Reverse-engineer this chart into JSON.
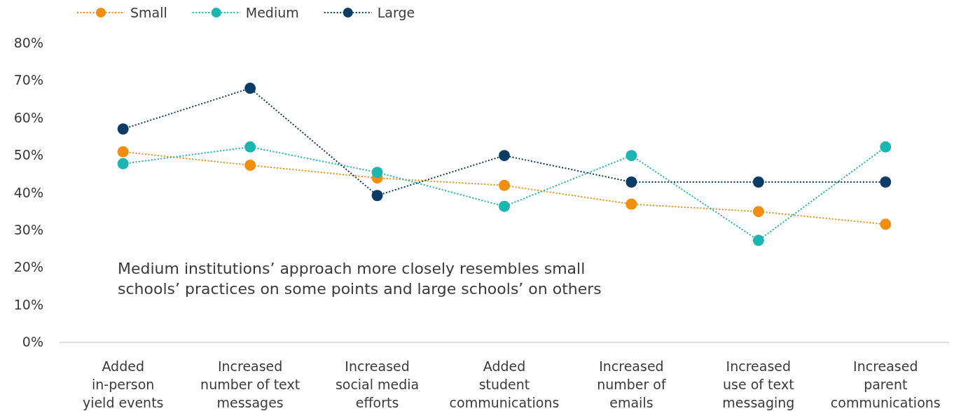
{
  "chart_data": {
    "type": "line",
    "categories": [
      "Added\nin-person\nyield events",
      "Increased\nnumber of text\nmessages",
      "Increased\nsocial media\nefforts",
      "Added\nstudent\ncommunications",
      "Increased\nnumber of\nemails",
      "Increased\nuse of text\nmessaging",
      "Increased\nparent\ncommunications"
    ],
    "series": [
      {
        "name": "Small",
        "color": "#f18d0f",
        "values": [
          51,
          47.4,
          44,
          42,
          37,
          35,
          31.6
        ]
      },
      {
        "name": "Medium",
        "color": "#1cb5b1",
        "values": [
          47.8,
          52.3,
          45.5,
          36.4,
          50,
          27.3,
          52.3
        ]
      },
      {
        "name": "Large",
        "color": "#0c3b66",
        "values": [
          57.1,
          68,
          39.3,
          50,
          42.9,
          42.9,
          42.9
        ]
      }
    ],
    "ylim": [
      0,
      80
    ],
    "yticks": [
      {
        "value": 0,
        "label": "0%"
      },
      {
        "value": 10,
        "label": "10%"
      },
      {
        "value": 20,
        "label": "20%"
      },
      {
        "value": 30,
        "label": "30%"
      },
      {
        "value": 40,
        "label": "40%"
      },
      {
        "value": 50,
        "label": "50%"
      },
      {
        "value": 60,
        "label": "60%"
      },
      {
        "value": 70,
        "label": "70%"
      },
      {
        "value": 80,
        "label": "80%"
      }
    ],
    "grid": false,
    "legend": "top left",
    "marker": "circle",
    "line_style": "dotted",
    "annotations": [
      "Medium institutions’ approach more closely resembles small\nschools’ practices on some points and large schools’ on others"
    ]
  }
}
